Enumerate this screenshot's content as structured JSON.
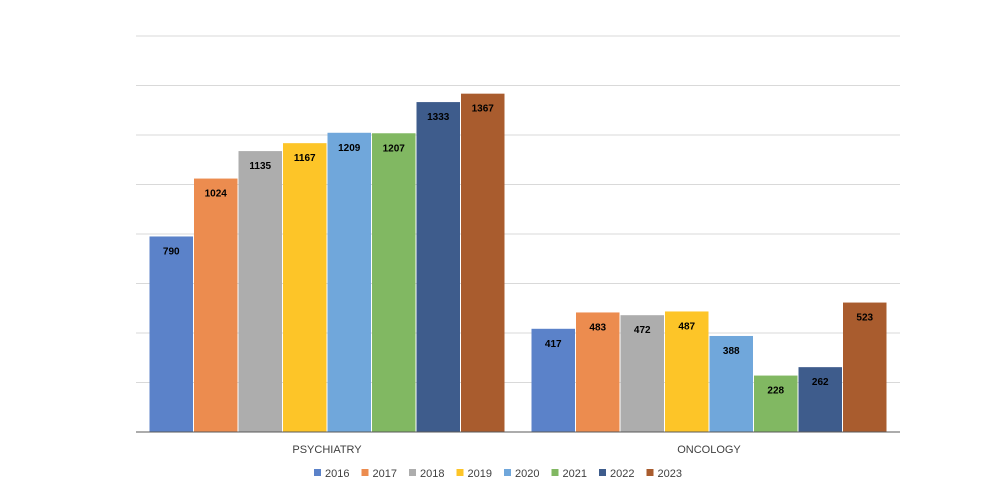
{
  "chart_data": {
    "type": "bar",
    "title": "",
    "xlabel": "",
    "ylabel": "",
    "categories": [
      "PSYCHIATRY",
      "ONCOLOGY"
    ],
    "ylim": [
      0,
      1600
    ],
    "gridlines": true,
    "legend_position": "bottom",
    "series": [
      {
        "name": "2016",
        "color": "#5b82c9",
        "values": [
          790,
          417
        ]
      },
      {
        "name": "2017",
        "color": "#ec8c4f",
        "values": [
          1024,
          483
        ]
      },
      {
        "name": "2018",
        "color": "#adadad",
        "values": [
          1135,
          472
        ]
      },
      {
        "name": "2019",
        "color": "#fdc528",
        "values": [
          1167,
          487
        ]
      },
      {
        "name": "2020",
        "color": "#70a7db",
        "values": [
          1209,
          388
        ]
      },
      {
        "name": "2021",
        "color": "#81b862",
        "values": [
          1207,
          228
        ]
      },
      {
        "name": "2022",
        "color": "#3e5c8c",
        "values": [
          1333,
          262
        ]
      },
      {
        "name": "2023",
        "color": "#a95c2e",
        "values": [
          1367,
          523
        ]
      }
    ]
  }
}
